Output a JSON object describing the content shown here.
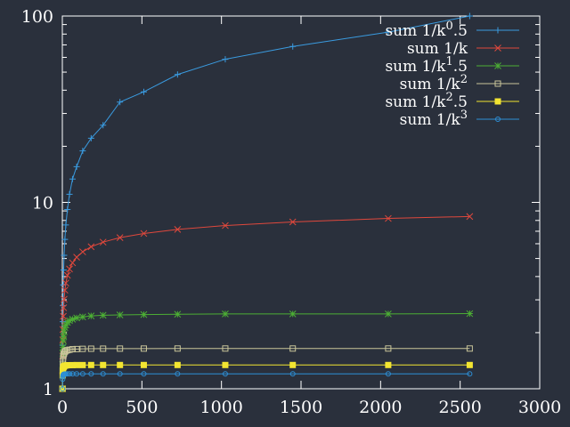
{
  "chart_data": {
    "type": "line",
    "title": "",
    "xlabel": "",
    "ylabel": "",
    "xlim": [
      0,
      3000
    ],
    "ylim": [
      1,
      100
    ],
    "yscale": "log",
    "grid": false,
    "legend_position": "top-right",
    "x_ticks": [
      "0",
      "500",
      "1000",
      "1500",
      "2000",
      "2500",
      "3000"
    ],
    "y_ticks": [
      "1",
      "10",
      "100"
    ],
    "x": [
      1,
      2,
      3,
      4,
      6,
      8,
      11,
      16,
      22,
      32,
      45,
      64,
      90,
      128,
      181,
      256,
      362,
      512,
      724,
      1024,
      1448,
      2048,
      2560
    ],
    "series": [
      {
        "name": "sum 1/k^0.5",
        "color": "#3a9be0",
        "marker": "plus",
        "values": [
          1.0,
          1.71,
          2.29,
          2.79,
          3.61,
          4.34,
          5.2,
          6.33,
          7.57,
          9.16,
          11.05,
          13.35,
          15.55,
          18.88,
          22.08,
          25.93,
          34.53,
          39.2,
          48.54,
          58.64,
          68.62,
          81.96,
          100.0
        ]
      },
      {
        "name": "sum 1/k",
        "color": "#e0483c",
        "marker": "x",
        "values": [
          1.0,
          1.5,
          1.83,
          2.08,
          2.45,
          2.72,
          3.02,
          3.38,
          3.69,
          4.06,
          4.39,
          4.74,
          5.08,
          5.43,
          5.78,
          6.12,
          6.47,
          6.81,
          7.16,
          7.51,
          7.85,
          8.2,
          8.4
        ]
      },
      {
        "name": "sum 1/k^1.5",
        "color": "#4cae34",
        "marker": "star",
        "values": [
          1.0,
          1.35,
          1.55,
          1.67,
          1.81,
          1.91,
          2.02,
          2.13,
          2.2,
          2.27,
          2.32,
          2.36,
          2.4,
          2.43,
          2.46,
          2.48,
          2.49,
          2.5,
          2.51,
          2.52,
          2.52,
          2.52,
          2.53
        ]
      },
      {
        "name": "sum 1/k^2",
        "color": "#c9c59a",
        "marker": "square-open",
        "values": [
          1.0,
          1.25,
          1.36,
          1.42,
          1.49,
          1.53,
          1.55,
          1.58,
          1.6,
          1.61,
          1.62,
          1.63,
          1.633,
          1.637,
          1.64,
          1.641,
          1.642,
          1.643,
          1.644,
          1.644,
          1.644,
          1.644,
          1.644
        ]
      },
      {
        "name": "sum 1/k^2.5",
        "color": "#f2e531",
        "marker": "square-filled",
        "values": [
          1.0,
          1.18,
          1.24,
          1.27,
          1.3,
          1.31,
          1.32,
          1.33,
          1.334,
          1.337,
          1.338,
          1.339,
          1.34,
          1.34,
          1.341,
          1.341,
          1.341,
          1.341,
          1.341,
          1.341,
          1.341,
          1.341,
          1.341
        ]
      },
      {
        "name": "sum 1/k^3",
        "color": "#2d8fd6",
        "marker": "circle-open",
        "values": [
          1.0,
          1.125,
          1.16,
          1.18,
          1.19,
          1.195,
          1.198,
          1.2,
          1.201,
          1.2015,
          1.2018,
          1.2019,
          1.202,
          1.202,
          1.202,
          1.2021,
          1.2021,
          1.2021,
          1.2021,
          1.2021,
          1.2021,
          1.2021,
          1.2021
        ]
      }
    ],
    "legend_labels": [
      {
        "base": "sum 1/k",
        "exp": "0",
        "suffix": ".5"
      },
      {
        "base": "sum 1/k",
        "exp": "",
        "suffix": ""
      },
      {
        "base": "sum 1/k",
        "exp": "1",
        "suffix": ".5"
      },
      {
        "base": "sum 1/k",
        "exp": "2",
        "suffix": ""
      },
      {
        "base": "sum 1/k",
        "exp": "2",
        "suffix": ".5"
      },
      {
        "base": "sum 1/k",
        "exp": "3",
        "suffix": ""
      }
    ]
  }
}
